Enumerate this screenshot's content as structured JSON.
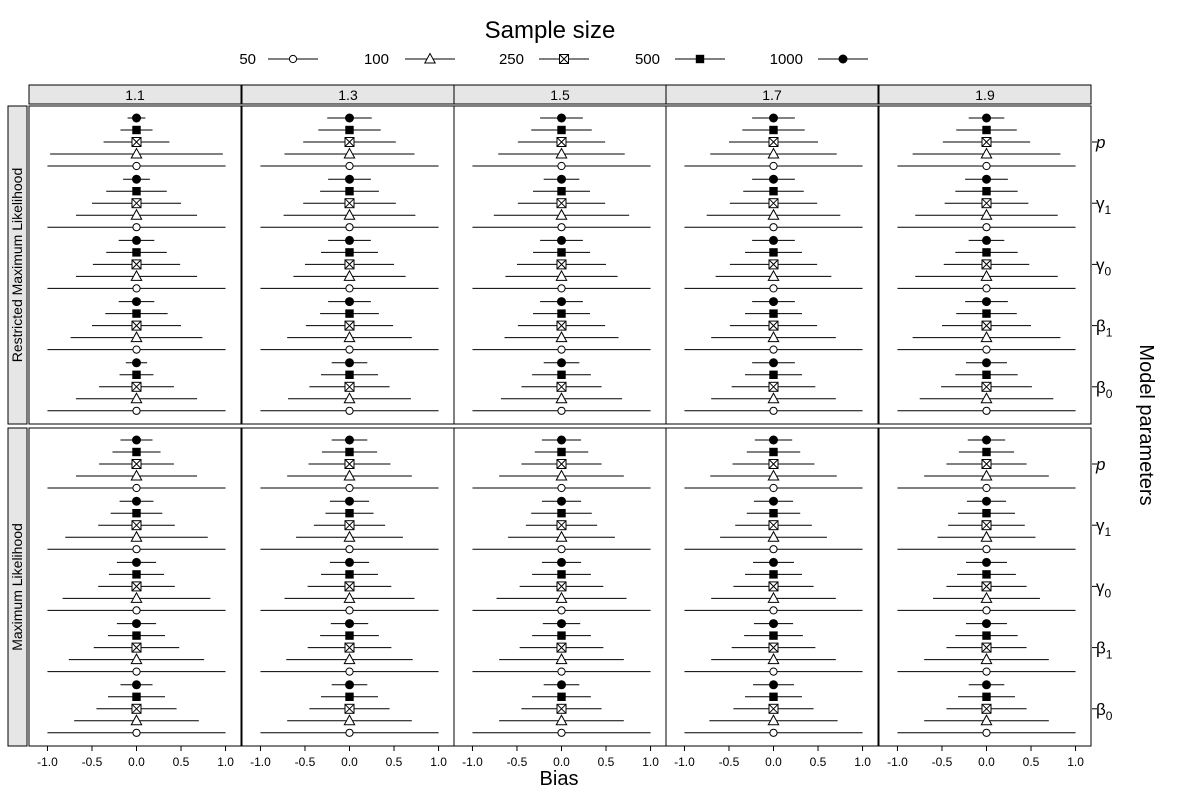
{
  "chart_data": {
    "type": "forest",
    "title": "Sample size",
    "legend": {
      "placement": "top",
      "entries": [
        {
          "label": "50",
          "symbol": "circle-open"
        },
        {
          "label": "100",
          "symbol": "triangle-open"
        },
        {
          "label": "250",
          "symbol": "diamond-plus"
        },
        {
          "label": "500",
          "symbol": "square-filled"
        },
        {
          "label": "1000",
          "symbol": "circle-filled"
        }
      ]
    },
    "xlabel": "Bias",
    "ylabel_right": "Model parameters",
    "xlim": [
      -1.05,
      1.05
    ],
    "xticks": [
      "-1.0",
      "-0.5",
      "0.0",
      "0.5",
      "1.0"
    ],
    "columns": [
      "1.1",
      "1.3",
      "1.5",
      "1.7",
      "1.9"
    ],
    "rows": [
      "Restricted Maximum Likelihood",
      "Maximum Likelihood"
    ],
    "parameters": [
      {
        "base": "p",
        "sub": ""
      },
      {
        "base": "γ",
        "sub": "1"
      },
      {
        "base": "γ",
        "sub": "0"
      },
      {
        "base": "β",
        "sub": "1"
      },
      {
        "base": "β",
        "sub": "0"
      }
    ],
    "panels": [
      {
        "row": 0,
        "col": 0,
        "half_widths": [
          [
            0.1,
            0.18,
            0.37,
            0.97,
            1.0
          ],
          [
            0.15,
            0.34,
            0.5,
            0.68,
            1.0
          ],
          [
            0.2,
            0.34,
            0.49,
            0.68,
            1.0
          ],
          [
            0.2,
            0.35,
            0.5,
            0.74,
            1.0
          ],
          [
            0.12,
            0.19,
            0.42,
            0.68,
            1.0
          ]
        ]
      },
      {
        "row": 0,
        "col": 1,
        "half_widths": [
          [
            0.25,
            0.35,
            0.52,
            0.73,
            1.0
          ],
          [
            0.24,
            0.33,
            0.52,
            0.74,
            1.0
          ],
          [
            0.24,
            0.32,
            0.5,
            0.63,
            1.0
          ],
          [
            0.24,
            0.33,
            0.49,
            0.7,
            1.0
          ],
          [
            0.2,
            0.32,
            0.45,
            0.69,
            1.0
          ]
        ]
      },
      {
        "row": 0,
        "col": 2,
        "half_widths": [
          [
            0.24,
            0.34,
            0.49,
            0.71,
            1.0
          ],
          [
            0.2,
            0.32,
            0.49,
            0.76,
            1.0
          ],
          [
            0.24,
            0.32,
            0.5,
            0.63,
            1.0
          ],
          [
            0.24,
            0.32,
            0.49,
            0.64,
            1.0
          ],
          [
            0.2,
            0.33,
            0.45,
            0.68,
            1.0
          ]
        ]
      },
      {
        "row": 0,
        "col": 3,
        "half_widths": [
          [
            0.24,
            0.35,
            0.5,
            0.71,
            1.0
          ],
          [
            0.24,
            0.34,
            0.49,
            0.75,
            1.0
          ],
          [
            0.24,
            0.32,
            0.49,
            0.65,
            1.0
          ],
          [
            0.24,
            0.32,
            0.49,
            0.7,
            1.0
          ],
          [
            0.24,
            0.32,
            0.47,
            0.7,
            1.0
          ]
        ]
      },
      {
        "row": 0,
        "col": 4,
        "half_widths": [
          [
            0.2,
            0.34,
            0.49,
            0.83,
            1.0
          ],
          [
            0.24,
            0.35,
            0.47,
            0.8,
            1.0
          ],
          [
            0.2,
            0.35,
            0.48,
            0.8,
            1.0
          ],
          [
            0.24,
            0.34,
            0.5,
            0.83,
            1.0
          ],
          [
            0.23,
            0.35,
            0.51,
            0.75,
            1.0
          ]
        ]
      },
      {
        "row": 1,
        "col": 0,
        "half_widths": [
          [
            0.18,
            0.27,
            0.42,
            0.68,
            1.0
          ],
          [
            0.19,
            0.29,
            0.43,
            0.8,
            1.0
          ],
          [
            0.22,
            0.31,
            0.43,
            0.83,
            1.0
          ],
          [
            0.22,
            0.32,
            0.48,
            0.76,
            1.0
          ],
          [
            0.18,
            0.32,
            0.45,
            0.7,
            1.0
          ]
        ]
      },
      {
        "row": 1,
        "col": 1,
        "half_widths": [
          [
            0.2,
            0.31,
            0.46,
            0.7,
            1.0
          ],
          [
            0.22,
            0.27,
            0.4,
            0.6,
            1.0
          ],
          [
            0.22,
            0.32,
            0.47,
            0.73,
            1.0
          ],
          [
            0.21,
            0.33,
            0.47,
            0.71,
            1.0
          ],
          [
            0.2,
            0.32,
            0.45,
            0.7,
            1.0
          ]
        ]
      },
      {
        "row": 1,
        "col": 2,
        "half_widths": [
          [
            0.22,
            0.3,
            0.45,
            0.7,
            1.0
          ],
          [
            0.22,
            0.34,
            0.4,
            0.6,
            1.0
          ],
          [
            0.22,
            0.33,
            0.47,
            0.73,
            1.0
          ],
          [
            0.21,
            0.33,
            0.47,
            0.7,
            1.0
          ],
          [
            0.2,
            0.33,
            0.45,
            0.7,
            1.0
          ]
        ]
      },
      {
        "row": 1,
        "col": 3,
        "half_widths": [
          [
            0.21,
            0.3,
            0.46,
            0.71,
            1.0
          ],
          [
            0.22,
            0.3,
            0.43,
            0.6,
            1.0
          ],
          [
            0.23,
            0.32,
            0.45,
            0.7,
            1.0
          ],
          [
            0.22,
            0.33,
            0.47,
            0.7,
            1.0
          ],
          [
            0.23,
            0.32,
            0.45,
            0.72,
            1.0
          ]
        ]
      },
      {
        "row": 1,
        "col": 4,
        "half_widths": [
          [
            0.21,
            0.31,
            0.45,
            0.7,
            1.0
          ],
          [
            0.22,
            0.32,
            0.43,
            0.55,
            1.0
          ],
          [
            0.23,
            0.33,
            0.45,
            0.6,
            1.0
          ],
          [
            0.23,
            0.35,
            0.45,
            0.7,
            1.0
          ],
          [
            0.2,
            0.32,
            0.45,
            0.7,
            1.0
          ]
        ]
      }
    ],
    "grid": false
  }
}
